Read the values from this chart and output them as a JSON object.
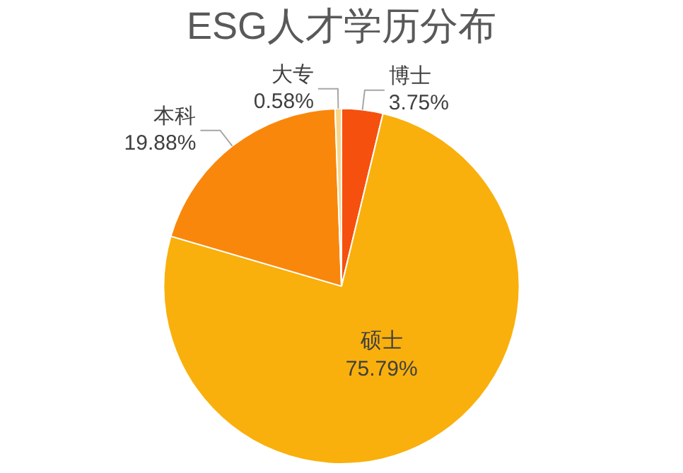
{
  "chart_data": {
    "type": "pie",
    "title": "ESG人才学历分布",
    "categories": [
      "博士",
      "硕士",
      "本科",
      "大专"
    ],
    "values": [
      3.75,
      75.79,
      19.88,
      0.58
    ],
    "value_labels": [
      "3.75%",
      "75.79%",
      "19.88%",
      "0.58%"
    ],
    "colors": [
      "#f6500e",
      "#f9b00c",
      "#f9870b",
      "#f7d58a"
    ],
    "legend": false
  }
}
